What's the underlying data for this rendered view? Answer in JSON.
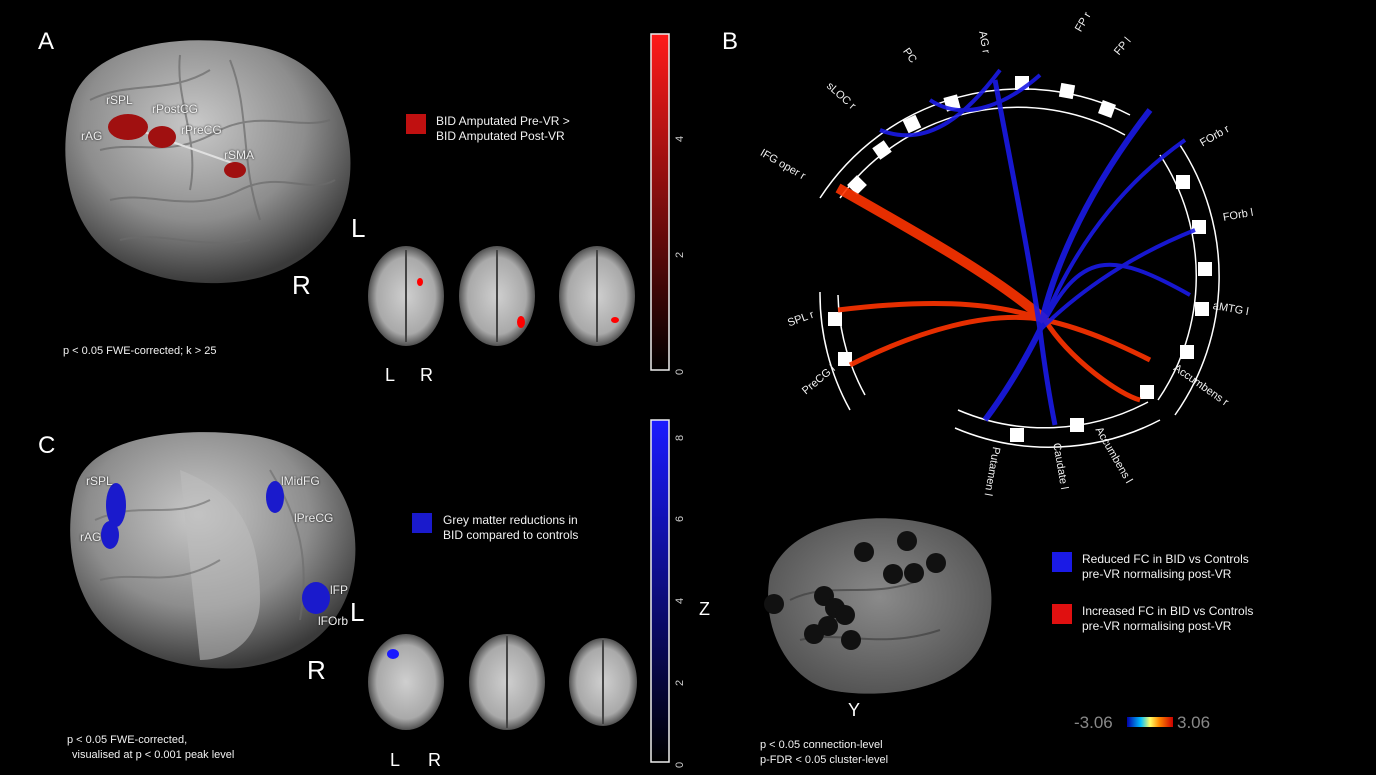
{
  "panelA": {
    "letter": "A",
    "region_labels": [
      "rSPL",
      "rPostCG",
      "rAG",
      "rPreCG",
      "rSMA"
    ],
    "orientation": {
      "L": "L",
      "R": "R"
    },
    "legend": {
      "line1": "BID Amputated Pre-VR >",
      "line2": "BID Amputated Post-VR",
      "color": "#c01010"
    },
    "slice_labels": {
      "L": "L",
      "R": "R"
    },
    "colorbar_ticks": [
      "0",
      "2",
      "4"
    ],
    "stats": "p < 0.05 FWE-corrected; k > 25"
  },
  "panelB": {
    "letter": "B",
    "node_labels": [
      "AG r",
      "PC",
      "FP r",
      "FP l",
      "sLOC r",
      "IFG oper r",
      "FOrb r",
      "FOrb l",
      "aMTG l",
      "SPL r",
      "PreCG l",
      "Accumbens r",
      "Accumbens l",
      "Caudate l",
      "Putamen l"
    ],
    "colors": {
      "reduced": "#1a1ae6",
      "increased": "#ff3300"
    }
  },
  "panelC": {
    "letter": "C",
    "region_labels": [
      "rSPL",
      "rAG",
      "lMidFG",
      "lPreCG",
      "lFP",
      "lFOrb"
    ],
    "orientation": {
      "L": "L",
      "R": "R"
    },
    "legend": {
      "line1": "Grey matter reductions in",
      "line2": "BID compared to controls",
      "color": "#1a1acc"
    },
    "slice_labels": {
      "L": "L",
      "R": "R"
    },
    "colorbar_ticks": [
      "0",
      "2",
      "4",
      "6",
      "8"
    ],
    "colorbar_label": "Z",
    "stats_line1": "p < 0.05 FWE-corrected,",
    "stats_line2": "visualised at p < 0.001 peak level"
  },
  "panelD": {
    "axis_label": "Y",
    "legend_reduced": {
      "line1": "Reduced FC in BID vs Controls",
      "line2": "pre-VR normalising post-VR",
      "color": "#1a1ae6"
    },
    "legend_increased": {
      "line1": "Increased FC in BID vs Controls",
      "line2": "pre-VR normalising post-VR",
      "color": "#e01010"
    },
    "scale_min": "-3.06",
    "scale_max": "3.06",
    "stats_line1": "p < 0.05 connection-level",
    "stats_line2": "p-FDR < 0.05 cluster-level"
  }
}
